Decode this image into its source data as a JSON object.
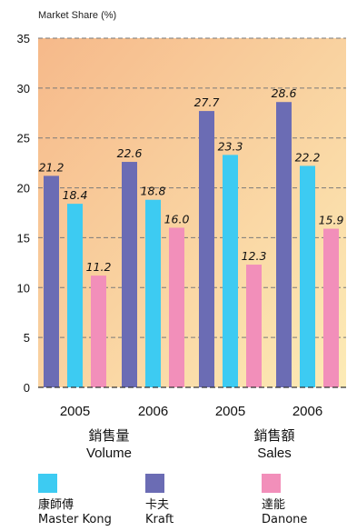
{
  "chart_data": {
    "type": "bar",
    "ylabel": "Market Share (%)",
    "ylim": [
      0,
      35
    ],
    "yticks": [
      "0",
      "5",
      "10",
      "15",
      "20",
      "25",
      "30",
      "35"
    ],
    "grid": "horizontal dashed",
    "x_groups": [
      {
        "year": "2005",
        "section": "volume"
      },
      {
        "year": "2006",
        "section": "volume"
      },
      {
        "year": "2005",
        "section": "sales"
      },
      {
        "year": "2006",
        "section": "sales"
      }
    ],
    "sections": {
      "volume": {
        "zh": "銷售量",
        "en": "Volume"
      },
      "sales": {
        "zh": "銷售額",
        "en": "Sales"
      }
    },
    "series": [
      {
        "key": "master_kong",
        "zh": "康師傅",
        "name": "Master Kong",
        "color": "#3dcbf2",
        "values": [
          18.4,
          18.8,
          23.3,
          22.2
        ]
      },
      {
        "key": "kraft",
        "zh": "卡夫",
        "name": "Kraft",
        "color": "#6b6cb4",
        "values": [
          21.2,
          22.6,
          27.7,
          28.6
        ]
      },
      {
        "key": "danone",
        "zh": "達能",
        "name": "Danone",
        "color": "#f28fba",
        "values": [
          11.2,
          16.0,
          12.3,
          15.9
        ]
      }
    ],
    "bar_order": [
      "kraft",
      "master_kong",
      "danone"
    ],
    "data_labels": [
      [
        "21.2",
        "18.4",
        "11.2"
      ],
      [
        "22.6",
        "18.8",
        "16.0"
      ],
      [
        "27.7",
        "23.3",
        "12.3"
      ],
      [
        "28.6",
        "22.2",
        "15.9"
      ]
    ],
    "background": {
      "from": "#f6b98a",
      "to": "#fcebb6"
    }
  },
  "legend": [
    {
      "zh": "康師傅",
      "en": "Master Kong",
      "color": "#3dcbf2"
    },
    {
      "zh": "卡夫",
      "en": "Kraft",
      "color": "#6b6cb4"
    },
    {
      "zh": "達能",
      "en": "Danone",
      "color": "#f28fba"
    }
  ]
}
